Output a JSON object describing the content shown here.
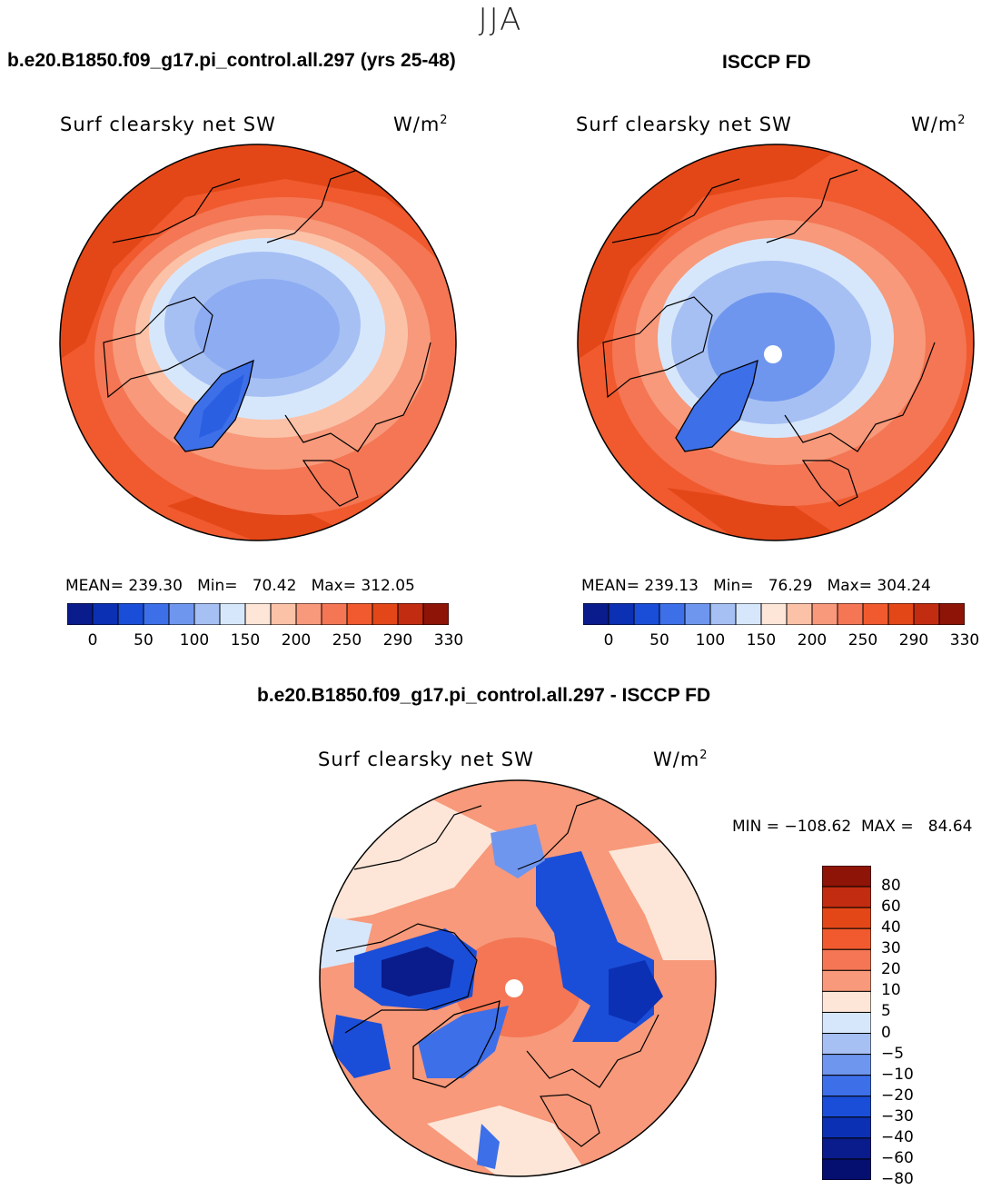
{
  "season": "JJA",
  "panels": [
    {
      "id": "model",
      "case_title": "b.e20.B1850.f09_g17.pi_control.all.297 (yrs 25-48)",
      "variable": "Surf clearsky net SW",
      "units_base": "W/m",
      "units_exp": "2",
      "stats": "MEAN= 239.30   Min=   70.42   Max= 312.05",
      "colorbar_ticks": [
        "0",
        "50",
        "100",
        "150",
        "200",
        "250",
        "290",
        "330"
      ]
    },
    {
      "id": "obs",
      "case_title": "ISCCP FD",
      "variable": "Surf clearsky net SW",
      "units_base": "W/m",
      "units_exp": "2",
      "stats": "MEAN= 239.13   Min=   76.29   Max= 304.24",
      "colorbar_ticks": [
        "0",
        "50",
        "100",
        "150",
        "200",
        "250",
        "290",
        "330"
      ]
    }
  ],
  "diff": {
    "case_title": "b.e20.B1850.f09_g17.pi_control.all.297 - ISCCP FD",
    "variable": "Surf clearsky net SW",
    "units_base": "W/m",
    "units_exp": "2",
    "stats": "MIN = −108.62  MAX =   84.64",
    "colorbar_ticks": [
      "80",
      "60",
      "40",
      "30",
      "20",
      "10",
      "5",
      "0",
      "−5",
      "−10",
      "−20",
      "−30",
      "−40",
      "−60",
      "−80"
    ]
  },
  "colors": {
    "abs_scale": [
      "#0a1c8c",
      "#0c30b4",
      "#1a4ed8",
      "#3d6fe8",
      "#6f96ee",
      "#a6c0f4",
      "#d7e7fb",
      "#fde6d8",
      "#fbc2a8",
      "#f7997a",
      "#f47654",
      "#f05a2e",
      "#e34718",
      "#c22c10",
      "#8e1408"
    ],
    "diff_scale": [
      "#8e1408",
      "#c22c10",
      "#e34718",
      "#f05a2e",
      "#f47654",
      "#f7997a",
      "#fde6d8",
      "#d7e7fb",
      "#a6c0f4",
      "#6f96ee",
      "#3d6fe8",
      "#1a4ed8",
      "#0c30b4",
      "#0a1c8c",
      "#050f70"
    ]
  }
}
